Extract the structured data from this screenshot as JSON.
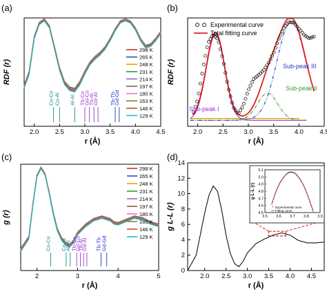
{
  "chart_data": [
    {
      "panel": "(a)",
      "type": "line",
      "ylabel": "RDF (r)",
      "xlabel": "r (Å)",
      "xlim": [
        1.8,
        4.5
      ],
      "xticks": [
        "2.0",
        "2.5",
        "3.0",
        "3.5",
        "4.0",
        "4.5"
      ],
      "legend_placement": "right",
      "series": [
        {
          "name": "298 K",
          "color": "#d62728",
          "peak1": 13.3
        },
        {
          "name": "265 K",
          "color": "#1f4fc8",
          "peak1": 13.7
        },
        {
          "name": "248 K",
          "color": "#ff9900",
          "peak1": 14.0
        },
        {
          "name": "231 K",
          "color": "#2ca02c",
          "peak1": 14.2
        },
        {
          "name": "214 K",
          "color": "#9467bd",
          "peak1": 14.5
        },
        {
          "name": "197 K",
          "color": "#8c564b",
          "peak1": 14.7
        },
        {
          "name": "180 K",
          "color": "#e377c2",
          "peak1": 14.9
        },
        {
          "name": "163 K",
          "color": "#6a8a3a",
          "peak1": 15.1
        },
        {
          "name": "146 K",
          "color": "#c0521b",
          "peak1": 15.3
        },
        {
          "name": "129 K",
          "color": "#17becf",
          "peak1": 15.5
        }
      ],
      "curve": {
        "x": [
          1.8,
          1.9,
          2.0,
          2.1,
          2.2,
          2.3,
          2.4,
          2.5,
          2.6,
          2.7,
          2.8,
          2.9,
          3.0,
          3.1,
          3.2,
          3.3,
          3.4,
          3.5,
          3.6,
          3.7,
          3.8,
          3.9,
          4.0,
          4.1,
          4.2,
          4.3,
          4.4,
          4.5
        ],
        "y": [
          0.05,
          0.25,
          0.75,
          0.95,
          1.0,
          0.9,
          0.6,
          0.3,
          0.1,
          0.02,
          0.0,
          0.1,
          0.25,
          0.38,
          0.46,
          0.52,
          0.6,
          0.72,
          0.86,
          0.97,
          1.0,
          0.97,
          0.87,
          0.72,
          0.62,
          0.64,
          0.72,
          0.82
        ]
      },
      "bond_labels": [
        {
          "text": "Co-Co",
          "x": 2.38,
          "color": "#178a8a"
        },
        {
          "text": "Co-Al",
          "x": 2.5,
          "color": "#178a8a"
        },
        {
          "text": "Al-Al",
          "x": 2.8,
          "color": "#178a8a"
        },
        {
          "text": "Tb-Co",
          "x": 3.0,
          "color": "#9b30d0"
        },
        {
          "text": "Gd-Co",
          "x": 3.09,
          "color": "#9b30d0"
        },
        {
          "text": "Tb-Al",
          "x": 3.18,
          "color": "#9b30d0"
        },
        {
          "text": "Gd-Al",
          "x": 3.26,
          "color": "#9b30d0"
        },
        {
          "text": "Tb-Tb",
          "x": 3.6,
          "color": "#2233cc"
        },
        {
          "text": "Gd-Gd",
          "x": 3.68,
          "color": "#2233cc"
        }
      ]
    },
    {
      "panel": "(b)",
      "type": "line",
      "ylabel": "RDF (r)",
      "xlabel": "r (Å)",
      "xlim": [
        1.8,
        4.5
      ],
      "ylim": [
        -1,
        17
      ],
      "xticks": [
        "2.0",
        "2.5",
        "3.0",
        "3.5",
        "4.0",
        "4.5"
      ],
      "legend": [
        "Experimental curve",
        "Total fitting curve"
      ],
      "legend_placement": "top",
      "experimental": {
        "x": [
          1.9,
          2.0,
          2.1,
          2.2,
          2.3,
          2.4,
          2.5,
          2.6,
          2.7,
          2.8,
          2.9,
          3.0,
          3.1,
          3.2,
          3.3,
          3.4,
          3.5,
          3.6,
          3.7,
          3.8,
          3.9,
          4.0,
          4.1,
          4.2,
          4.3
        ],
        "y": [
          0.8,
          3.5,
          8.5,
          12.8,
          14.2,
          13.5,
          10.0,
          5.5,
          2.2,
          1.0,
          2.5,
          5.0,
          6.8,
          7.5,
          8.3,
          9.5,
          11.2,
          13.5,
          15.3,
          16.3,
          16.2,
          15.2,
          14.2,
          13.6,
          13.9
        ]
      },
      "sub_peaks": [
        {
          "name": "Sub-peak I",
          "color": "#9b30d0",
          "center": 2.35,
          "height": 14.3,
          "width": 0.18
        },
        {
          "name": "Sub-peak II",
          "color": "#3a9a2a",
          "center": 3.38,
          "height": 4.5,
          "width": 0.2
        },
        {
          "name": "Sub-peak III",
          "color": "#2233cc",
          "center": 3.85,
          "height": 16.5,
          "width": 0.28
        }
      ],
      "baseline": 0.3
    },
    {
      "panel": "(c)",
      "type": "line",
      "ylabel": "g (r)",
      "xlabel": "r (Å)",
      "xlim": [
        1.6,
        5.0
      ],
      "xticks": [
        "2",
        "3",
        "4",
        "5"
      ],
      "legend_placement": "right",
      "series": [
        {
          "name": "298 K",
          "color": "#d62728",
          "peak1": 3.0
        },
        {
          "name": "265 K",
          "color": "#1f4fc8",
          "peak1": 3.05
        },
        {
          "name": "248 K",
          "color": "#ff9900",
          "peak1": 3.1
        },
        {
          "name": "231 K",
          "color": "#2ca02c",
          "peak1": 3.15
        },
        {
          "name": "214 K",
          "color": "#9467bd",
          "peak1": 3.2
        },
        {
          "name": "197 K",
          "color": "#8c564b",
          "peak1": 3.25
        },
        {
          "name": "180 K",
          "color": "#e377c2",
          "peak1": 3.3
        },
        {
          "name": "163 K",
          "color": "#6a8a3a",
          "peak1": 3.35
        },
        {
          "name": "146 K",
          "color": "#c0521b",
          "peak1": 3.4
        },
        {
          "name": "129 K",
          "color": "#17becf",
          "peak1": 3.45
        }
      ],
      "curve": {
        "x": [
          1.6,
          1.8,
          1.9,
          2.0,
          2.1,
          2.2,
          2.3,
          2.4,
          2.5,
          2.6,
          2.7,
          2.8,
          2.9,
          3.0,
          3.2,
          3.4,
          3.6,
          3.8,
          3.9,
          4.0,
          4.2,
          4.4,
          4.6,
          4.8,
          5.0
        ],
        "y": [
          0.0,
          0.15,
          0.55,
          0.9,
          1.0,
          0.92,
          0.7,
          0.45,
          0.25,
          0.14,
          0.08,
          0.05,
          0.1,
          0.2,
          0.3,
          0.37,
          0.4,
          0.37,
          0.33,
          0.32,
          0.36,
          0.4,
          0.38,
          0.33,
          0.3
        ]
      },
      "bond_labels": [
        {
          "text": "Co-Co",
          "x": 2.34,
          "color": "#178a8a"
        },
        {
          "text": "Co-Al",
          "x": 2.72,
          "color": "#178a8a"
        },
        {
          "text": "Al-Al",
          "x": 2.82,
          "color": "#178a8a"
        },
        {
          "text": "Tb-Co",
          "x": 2.98,
          "color": "#9b30d0"
        },
        {
          "text": "Gd-Co",
          "x": 3.07,
          "color": "#9b30d0"
        },
        {
          "text": "Tb-Al",
          "x": 3.15,
          "color": "#9b30d0"
        },
        {
          "text": "Gd-Al",
          "x": 3.23,
          "color": "#9b30d0"
        },
        {
          "text": "Tb-Tb",
          "x": 3.58,
          "color": "#2233cc"
        },
        {
          "text": "Gd-Gd",
          "x": 3.72,
          "color": "#2233cc"
        }
      ]
    },
    {
      "panel": "(d)",
      "type": "line",
      "ylabel": "g L-L (r)",
      "xlabel": "r (Å)",
      "xlim": [
        1.6,
        4.8
      ],
      "ylim": [
        0,
        14
      ],
      "xticks": [
        "2.0",
        "2.5",
        "3.0",
        "3.5",
        "4.0",
        "4.5"
      ],
      "yticks": [
        "0",
        "2",
        "4",
        "6",
        "8",
        "10",
        "12",
        "14"
      ],
      "main": {
        "x": [
          1.6,
          1.8,
          2.0,
          2.1,
          2.2,
          2.3,
          2.4,
          2.5,
          2.6,
          2.7,
          2.8,
          2.9,
          3.0,
          3.2,
          3.4,
          3.6,
          3.8,
          4.0,
          4.2,
          4.4,
          4.6,
          4.8
        ],
        "y": [
          0.0,
          2.0,
          7.5,
          9.8,
          11.0,
          10.3,
          7.8,
          4.6,
          2.2,
          0.9,
          0.5,
          1.2,
          2.3,
          3.5,
          4.1,
          4.6,
          4.9,
          4.6,
          3.9,
          3.6,
          3.6,
          3.7
        ]
      },
      "inset": {
        "ylabel": "g L-L (r)",
        "xlim": [
          3.5,
          3.9
        ],
        "ylim": [
          4.5,
          5.1
        ],
        "xticks": [
          "3.5",
          "3.6",
          "3.7",
          "3.8",
          "3.9"
        ],
        "yticks": [
          "4.5",
          "4.6",
          "4.7",
          "4.8",
          "4.9",
          "5.0",
          "5.1"
        ],
        "legend": [
          "Experimental curve",
          "Fitting curve"
        ],
        "x": [
          3.55,
          3.57,
          3.59,
          3.61,
          3.63,
          3.65,
          3.67,
          3.69,
          3.71,
          3.73,
          3.75,
          3.77,
          3.79,
          3.81,
          3.83,
          3.85
        ],
        "y": [
          4.62,
          4.74,
          4.84,
          4.92,
          4.98,
          5.03,
          5.06,
          5.07,
          5.06,
          5.03,
          4.98,
          4.92,
          4.84,
          4.74,
          4.63,
          4.52
        ]
      }
    }
  ]
}
